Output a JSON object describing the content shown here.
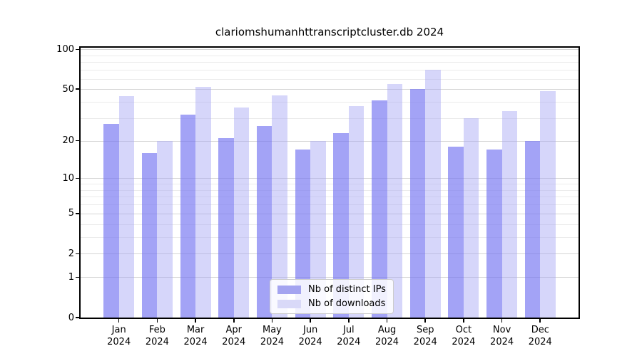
{
  "title": "clariomshumanhttranscriptcluster.db 2024",
  "legend": {
    "items": [
      {
        "label": "Nb of distinct IPs",
        "color": "#a4a4f0"
      },
      {
        "label": "Nb of downloads",
        "color": "#d9d9f8"
      }
    ]
  },
  "colors": {
    "bar_distinct_ips": "rgba(118,118,242,0.67)",
    "bar_downloads": "rgba(165,165,243,0.45)",
    "grid_major": "#d4d4d4",
    "grid_minor": "#ebebeb",
    "axis": "#000000"
  },
  "chart_data": {
    "type": "bar",
    "title": "clariomshumanhttranscriptcluster.db 2024",
    "categories": [
      "Jan 2024",
      "Feb 2024",
      "Mar 2024",
      "Apr 2024",
      "May 2024",
      "Jun 2024",
      "Jul 2024",
      "Aug 2024",
      "Sep 2024",
      "Oct 2024",
      "Nov 2024",
      "Dec 2024"
    ],
    "series": [
      {
        "name": "Nb of distinct IPs",
        "values": [
          27,
          16,
          32,
          21,
          26,
          17,
          23,
          41,
          50,
          18,
          17,
          20
        ]
      },
      {
        "name": "Nb of downloads",
        "values": [
          44,
          20,
          52,
          36,
          45,
          20,
          37,
          55,
          70,
          30,
          34,
          48
        ]
      }
    ],
    "y_scale": "log1p",
    "y_ticks_labeled": [
      0,
      1,
      2,
      5,
      10,
      20,
      50,
      100
    ],
    "y_ticks_minor": [
      3,
      4,
      6,
      7,
      8,
      9,
      30,
      40,
      60,
      70,
      80,
      90
    ],
    "ylim": [
      0,
      103
    ],
    "grid": true,
    "legend_position": "lower center"
  }
}
